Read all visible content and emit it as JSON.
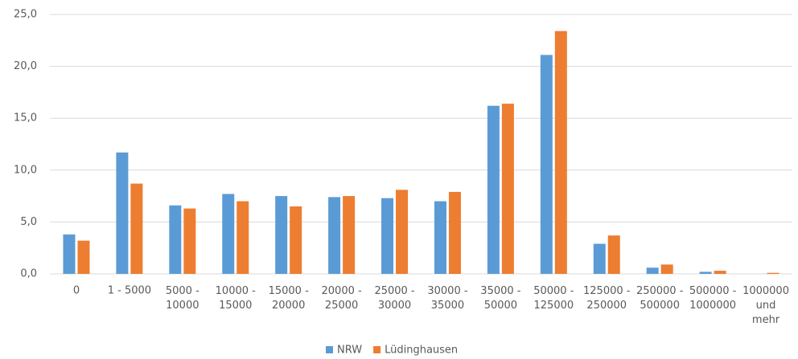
{
  "chart_data": {
    "type": "bar",
    "categories": [
      "0",
      "1 - 5000",
      "5000 -\n10000",
      "10000 -\n15000",
      "15000 -\n20000",
      "20000 -\n25000",
      "25000 -\n30000",
      "30000 -\n35000",
      "35000 -\n50000",
      "50000 -\n125000",
      "125000 -\n250000",
      "250000 -\n500000",
      "500000 -\n1000000",
      "1000000\nund\nmehr"
    ],
    "series": [
      {
        "name": "NRW",
        "color": "#5b9bd5",
        "values": [
          3.8,
          11.7,
          6.6,
          7.7,
          7.5,
          7.4,
          7.3,
          7.0,
          16.2,
          21.1,
          2.9,
          0.6,
          0.2,
          0.0
        ]
      },
      {
        "name": "Lüdinghausen",
        "color": "#ed7d31",
        "values": [
          3.2,
          8.7,
          6.3,
          7.0,
          6.5,
          7.5,
          8.1,
          7.9,
          16.4,
          23.4,
          3.7,
          0.9,
          0.3,
          0.1
        ]
      }
    ],
    "ylim": [
      0,
      25
    ],
    "yticks": [
      {
        "value": 0,
        "label": "0,0"
      },
      {
        "value": 5,
        "label": "5,0"
      },
      {
        "value": 10,
        "label": "10,0"
      },
      {
        "value": 15,
        "label": "15,0"
      },
      {
        "value": 20,
        "label": "20,0"
      },
      {
        "value": 25,
        "label": "25,0"
      }
    ],
    "grid": true,
    "legend": "bottom"
  }
}
